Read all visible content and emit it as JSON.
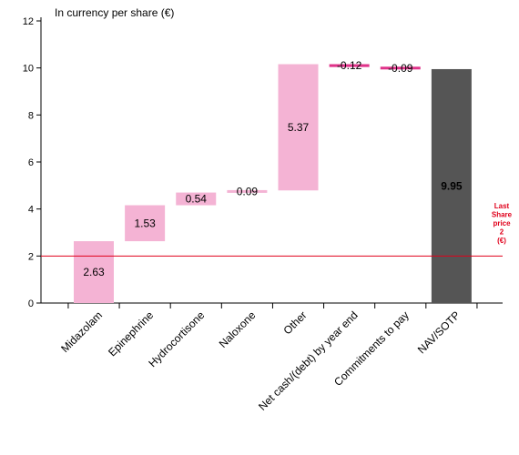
{
  "chart_data": {
    "type": "bar",
    "subtype": "waterfall",
    "unit_label": "In currency per share (€)",
    "categories": [
      "Midazolam",
      "Epinephrine",
      "Hydrocortisone",
      "Naloxone",
      "Other",
      "Net cash/(debt) by year end",
      "Commitments to pay",
      "NAV/SOTP"
    ],
    "values": [
      2.63,
      1.53,
      0.54,
      0.09,
      5.37,
      -0.12,
      -0.09,
      9.95
    ],
    "value_labels": [
      "2.63",
      "1.53",
      "0.54",
      "0.09",
      "5.37",
      "-0.12",
      "-0.09",
      "9.95"
    ],
    "bar_kinds": [
      "delta",
      "delta",
      "delta",
      "delta",
      "delta",
      "delta",
      "delta",
      "total"
    ],
    "ylim": [
      0,
      12
    ],
    "yticks": [
      0,
      2,
      4,
      6,
      8,
      10,
      12
    ],
    "reference_line": {
      "value": 2,
      "label_lines": [
        "Last",
        "Share",
        "price",
        "2",
        "(€)"
      ]
    },
    "colors": {
      "positive": "#f4b3d4",
      "negative": "#e0338a",
      "total": "#555555",
      "reference": "#e0001b"
    },
    "grid": false
  }
}
